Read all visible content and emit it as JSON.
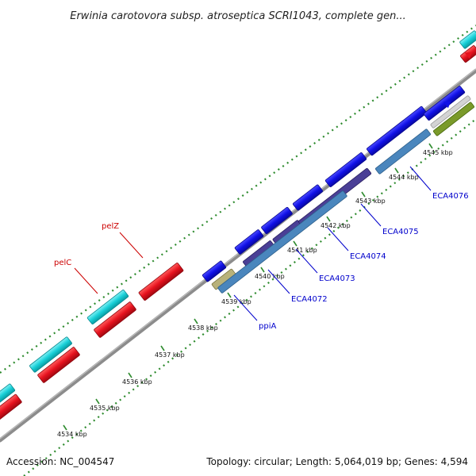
{
  "title": "Erwinia carotovora subsp. atroseptica SCRI1043, complete gen...",
  "footer": {
    "accession": "Accession: NC_004547",
    "summary": "Topology: circular; Length: 5,064,019 bp; Genes: 4,594"
  },
  "colors": {
    "backbone": "#8c8c8c",
    "dots": "#2e8b2e",
    "forward_gene": "#1010e6",
    "reverse_gene": "#e6121e",
    "cyan_gene": "#18d0d8",
    "label_blue": "#0000cc",
    "label_red": "#cc0000"
  },
  "ticks": [
    {
      "label": "4534 kbp"
    },
    {
      "label": "4535 kbp"
    },
    {
      "label": "4536 kbp"
    },
    {
      "label": "4537 kbp"
    },
    {
      "label": "4538 kbp"
    },
    {
      "label": "4539 kbp"
    },
    {
      "label": "4540 kbp"
    },
    {
      "label": "4541 kbp"
    },
    {
      "label": "4542 kbp"
    },
    {
      "label": "4543 kbp"
    },
    {
      "label": "4544 kbp"
    },
    {
      "label": "4545 kbp"
    }
  ],
  "gene_labels": [
    {
      "name": "pelC",
      "color": "red"
    },
    {
      "name": "pelZ",
      "color": "red"
    },
    {
      "name": "ppiA",
      "color": "blue"
    },
    {
      "name": "ECA4072",
      "color": "blue"
    },
    {
      "name": "ECA4073",
      "color": "blue"
    },
    {
      "name": "ECA4074",
      "color": "blue"
    },
    {
      "name": "ECA4075",
      "color": "blue"
    },
    {
      "name": "ECA4076",
      "color": "blue"
    }
  ]
}
